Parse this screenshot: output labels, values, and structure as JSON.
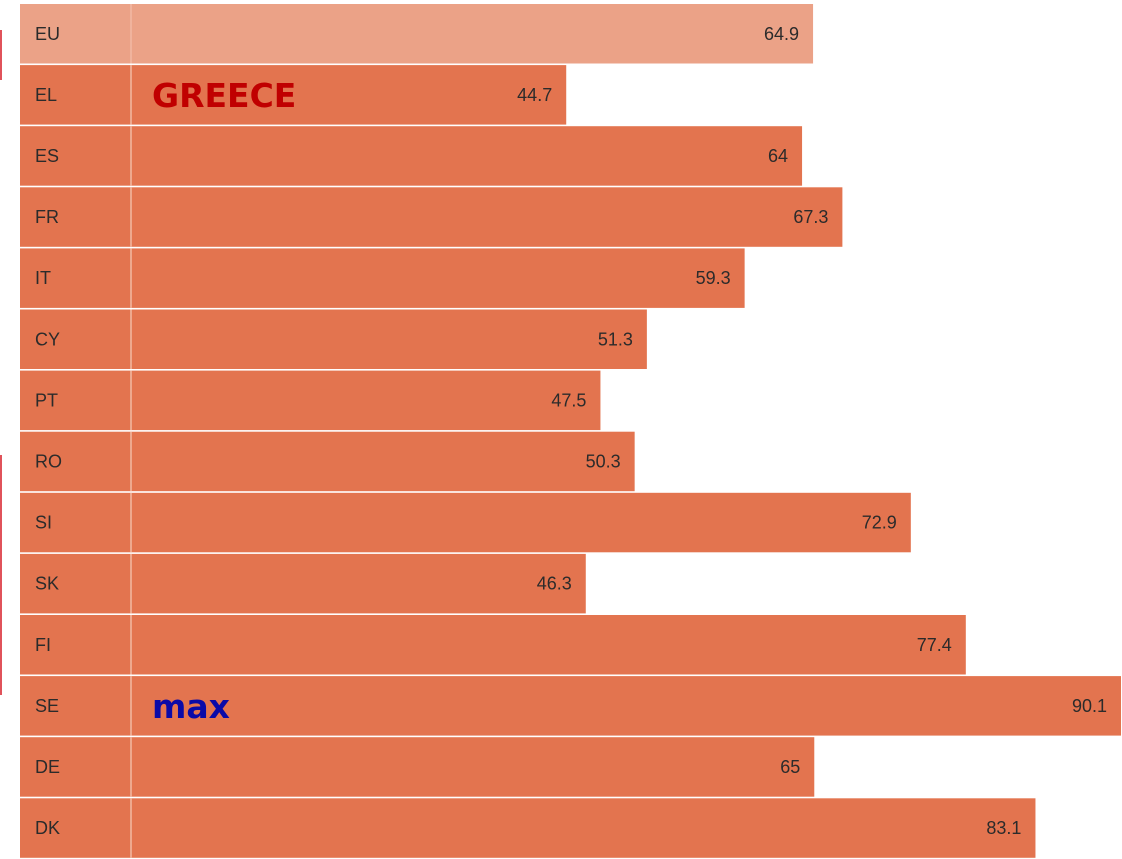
{
  "chart_data": {
    "type": "bar",
    "orientation": "horizontal",
    "categories": [
      "EU",
      "EL",
      "ES",
      "FR",
      "IT",
      "CY",
      "PT",
      "RO",
      "SI",
      "SK",
      "FI",
      "SE",
      "DE",
      "DK"
    ],
    "values": [
      64.9,
      44.7,
      64,
      67.3,
      59.3,
      51.3,
      47.5,
      50.3,
      72.9,
      46.3,
      77.4,
      90.1,
      65,
      83.1
    ],
    "value_labels": [
      "64.9",
      "44.7",
      "64",
      "67.3",
      "59.3",
      "51.3",
      "47.5",
      "50.3",
      "72.9",
      "46.3",
      "77.4",
      "90.1",
      "65",
      "83.1"
    ],
    "xlim": [
      0,
      90.1
    ],
    "grid": false,
    "highlight_category": "EU",
    "annotations": [
      {
        "category": "EL",
        "text": "GREECE",
        "color": "#c00000"
      },
      {
        "category": "SE",
        "text": "max",
        "color": "#0a0aa8"
      }
    ]
  },
  "colors": {
    "bar": "#e3744f",
    "bar_highlight": "#eba287",
    "row_line": "#f1b9a4",
    "edge_accent": "#e0525a"
  }
}
